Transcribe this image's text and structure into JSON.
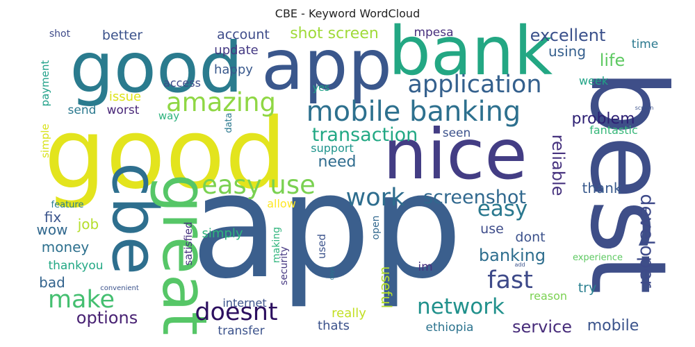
{
  "chart_data": {
    "type": "wordcloud",
    "title": "CBE - Keyword WordCloud",
    "words": [
      {
        "text": "app",
        "weight": 100,
        "color": "#3b5f8d"
      },
      {
        "text": "best",
        "weight": 72,
        "color": "#3e4e88"
      },
      {
        "text": "good",
        "weight": 70,
        "color": "#e3e41d"
      },
      {
        "text": "nice",
        "weight": 58,
        "color": "#433d84"
      },
      {
        "text": "good",
        "weight": 50,
        "color": "#2a7b8e"
      },
      {
        "text": "app",
        "weight": 50,
        "color": "#3a578c"
      },
      {
        "text": "bank",
        "weight": 48,
        "color": "#23a783"
      },
      {
        "text": "cbe",
        "weight": 46,
        "color": "#2e6f8e"
      },
      {
        "text": "great",
        "weight": 44,
        "color": "#56c667"
      },
      {
        "text": "mobile banking",
        "weight": 26,
        "color": "#2d708e"
      },
      {
        "text": "amazing",
        "weight": 24,
        "color": "#8fd744"
      },
      {
        "text": "easy use",
        "weight": 24,
        "color": "#7ad151"
      },
      {
        "text": "doesnt",
        "weight": 22,
        "color": "#2c0f5f"
      },
      {
        "text": "application",
        "weight": 22,
        "color": "#34608d"
      },
      {
        "text": "work",
        "weight": 22,
        "color": "#2e6d8e"
      },
      {
        "text": "make",
        "weight": 22,
        "color": "#44bf70"
      },
      {
        "text": "fast",
        "weight": 22,
        "color": "#3e4a89"
      },
      {
        "text": "network",
        "weight": 20,
        "color": "#21918c"
      },
      {
        "text": "easy",
        "weight": 20,
        "color": "#2a788e"
      },
      {
        "text": "screenshot",
        "weight": 18,
        "color": "#30688e"
      },
      {
        "text": "transaction",
        "weight": 16,
        "color": "#22a884"
      },
      {
        "text": "developer",
        "weight": 18,
        "color": "#3e4a89"
      },
      {
        "text": "reliable",
        "weight": 16,
        "color": "#46327e"
      },
      {
        "text": "excellent",
        "weight": 16,
        "color": "#3b518b"
      },
      {
        "text": "life",
        "weight": 16,
        "color": "#5ec962"
      },
      {
        "text": "banking",
        "weight": 16,
        "color": "#2e6e8e"
      },
      {
        "text": "options",
        "weight": 16,
        "color": "#482273"
      },
      {
        "text": "service",
        "weight": 16,
        "color": "#472c7a"
      },
      {
        "text": "mobile",
        "weight": 14,
        "color": "#3a538b"
      },
      {
        "text": "shot screen",
        "weight": 14,
        "color": "#a0da39"
      },
      {
        "text": "need",
        "weight": 14,
        "color": "#2f6c8e"
      },
      {
        "text": "problem",
        "weight": 14,
        "color": "#2c1f73"
      },
      {
        "text": "thank",
        "weight": 12,
        "color": "#38598c"
      },
      {
        "text": "useful",
        "weight": 12,
        "color": "#b5de2b"
      },
      {
        "text": "fix",
        "weight": 12,
        "color": "#3a548c"
      },
      {
        "text": "job",
        "weight": 12,
        "color": "#b5de2b"
      },
      {
        "text": "wow",
        "weight": 12,
        "color": "#31688e"
      },
      {
        "text": "money",
        "weight": 12,
        "color": "#2d708e"
      },
      {
        "text": "bad",
        "weight": 12,
        "color": "#33638d"
      },
      {
        "text": "using",
        "weight": 12,
        "color": "#355f8d"
      },
      {
        "text": "account",
        "weight": 12,
        "color": "#3e4c8a"
      },
      {
        "text": "better",
        "weight": 12,
        "color": "#3b528b"
      },
      {
        "text": "update",
        "weight": 12,
        "color": "#443983"
      },
      {
        "text": "happy",
        "weight": 12,
        "color": "#38588c"
      },
      {
        "text": "mpesa",
        "weight": 11,
        "color": "#472f7d"
      },
      {
        "text": "time",
        "weight": 11,
        "color": "#2a788e"
      },
      {
        "text": "week",
        "weight": 10,
        "color": "#20a386"
      },
      {
        "text": "seen",
        "weight": 11,
        "color": "#3b518b"
      },
      {
        "text": "send",
        "weight": 11,
        "color": "#2a788e"
      },
      {
        "text": "worst",
        "weight": 11,
        "color": "#482677"
      },
      {
        "text": "issue",
        "weight": 11,
        "color": "#dde318"
      },
      {
        "text": "access",
        "weight": 10,
        "color": "#3e4a89"
      },
      {
        "text": "support",
        "weight": 10,
        "color": "#1f948c"
      },
      {
        "text": "use",
        "weight": 11,
        "color": "#3e4c8a"
      },
      {
        "text": "dont",
        "weight": 11,
        "color": "#3b518b"
      },
      {
        "text": "simply",
        "weight": 11,
        "color": "#2fb47c"
      },
      {
        "text": "thankyou",
        "weight": 11,
        "color": "#22a884"
      },
      {
        "text": "really",
        "weight": 11,
        "color": "#c2df23"
      },
      {
        "text": "thats",
        "weight": 11,
        "color": "#3b528b"
      },
      {
        "text": "transfer",
        "weight": 11,
        "color": "#3b528b"
      },
      {
        "text": "ethiopia",
        "weight": 11,
        "color": "#2c738e"
      },
      {
        "text": "internet",
        "weight": 10,
        "color": "#3b528b"
      },
      {
        "text": "reason",
        "weight": 10,
        "color": "#7ad151"
      },
      {
        "text": "try",
        "weight": 11,
        "color": "#277e8e"
      },
      {
        "text": "im",
        "weight": 10,
        "color": "#46307e"
      },
      {
        "text": "allow",
        "weight": 10,
        "color": "#fde725"
      },
      {
        "text": "fantastic",
        "weight": 10,
        "color": "#35b779"
      },
      {
        "text": "payment",
        "weight": 10,
        "color": "#1fa088"
      },
      {
        "text": "shot",
        "weight": 8,
        "color": "#3e4a89"
      },
      {
        "text": "simple",
        "weight": 9,
        "color": "#d8e219"
      },
      {
        "text": "way",
        "weight": 9,
        "color": "#2db27d"
      },
      {
        "text": "yes",
        "weight": 8,
        "color": "#20a386"
      },
      {
        "text": "data",
        "weight": 8,
        "color": "#2a788e"
      },
      {
        "text": "feature",
        "weight": 8,
        "color": "#287d8e"
      },
      {
        "text": "satisfied",
        "weight": 9,
        "color": "#46327e"
      },
      {
        "text": "making",
        "weight": 8,
        "color": "#2fb47c"
      },
      {
        "text": "security",
        "weight": 8,
        "color": "#453781"
      },
      {
        "text": "used",
        "weight": 9,
        "color": "#3b528b"
      },
      {
        "text": "open",
        "weight": 8,
        "color": "#31688e"
      },
      {
        "text": "experience",
        "weight": 8,
        "color": "#5ec962"
      },
      {
        "text": "convenient",
        "weight": 6,
        "color": "#3b528b"
      },
      {
        "text": "days",
        "weight": 5,
        "color": "#2a788e"
      },
      {
        "text": "add",
        "weight": 5,
        "color": "#3b528b"
      },
      {
        "text": "screen",
        "weight": 5,
        "color": "#3b528b"
      }
    ]
  }
}
